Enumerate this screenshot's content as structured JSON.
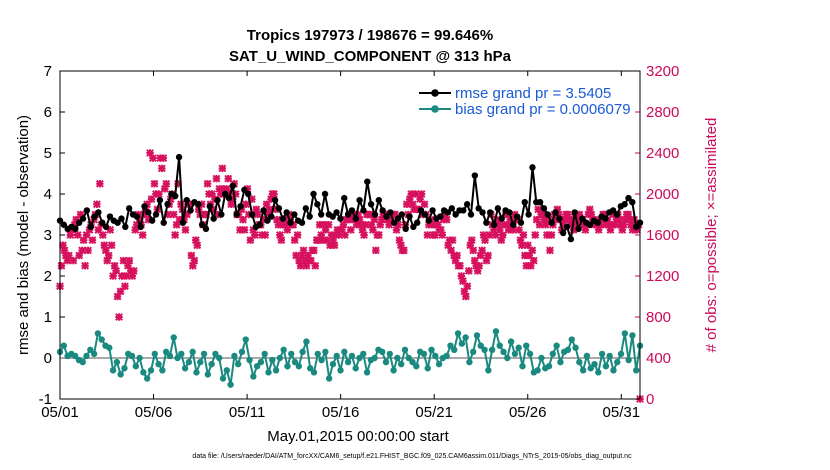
{
  "chart_data": {
    "type": "line",
    "title": "Tropics 197973 / 198676 = 99.646%",
    "subtitle": "SAT_U_WIND_COMPONENT @ 313 hPa",
    "xlabel": "May.01,2015 00:00:00 start",
    "ylabel": "rmse and bias (model - observation)",
    "ylabel_right": "# of obs: o=possible; ×=assimilated",
    "footnote": "data file: /Users/raeder/DAI/ATM_forcXX/CAM6_setup/f.e21.FHIST_BGC.f09_025.CAM6assim.011/Diags_NTrS_2015-05/obs_diag_output.nc",
    "x_ticks": [
      "05/01",
      "05/06",
      "05/11",
      "05/16",
      "05/21",
      "05/26",
      "05/31"
    ],
    "x_tick_days": [
      1,
      6,
      11,
      16,
      21,
      26,
      31
    ],
    "xlim": [
      1,
      32
    ],
    "ylim": [
      -1,
      7
    ],
    "y_ticks": [
      -1,
      0,
      1,
      2,
      3,
      4,
      5,
      6,
      7
    ],
    "ylim_right": [
      0,
      3200
    ],
    "y_ticks_right": [
      0,
      400,
      800,
      1200,
      1600,
      2000,
      2400,
      2800,
      3200
    ],
    "colors": {
      "rmse": "#000000",
      "bias": "#1a8a80",
      "obs": "#d6115e",
      "legend_text": "#1a5ad6",
      "zero_line": "#aaaaaa"
    },
    "series": [
      {
        "name": "rmse grand pr = 3.5405",
        "values": [
          3.35,
          3.25,
          3.15,
          3.2,
          3.15,
          3.3,
          3.4,
          3.6,
          3.2,
          3.45,
          3.55,
          3.3,
          3.2,
          3.45,
          3.35,
          3.3,
          3.4,
          3.2,
          3.65,
          3.5,
          3.45,
          3.2,
          3.7,
          3.55,
          3.35,
          3.5,
          3.85,
          3.3,
          3.75,
          4.0,
          3.95,
          4.9,
          3.3,
          3.85,
          3.6,
          3.8,
          3.75,
          3.25,
          3.15,
          3.7,
          3.4,
          3.85,
          3.5,
          4.0,
          3.9,
          4.2,
          3.5,
          3.7,
          4.1,
          4.0,
          3.5,
          3.2,
          3.25,
          3.6,
          3.35,
          3.45,
          3.85,
          3.65,
          3.4,
          3.55,
          3.3,
          3.5,
          3.35,
          3.3,
          3.65,
          3.45,
          4.0,
          3.75,
          3.5,
          4.0,
          3.5,
          3.45,
          3.55,
          3.4,
          3.9,
          3.5,
          3.6,
          3.4,
          3.85,
          3.6,
          4.3,
          3.75,
          3.5,
          3.85,
          3.6,
          3.45,
          3.55,
          3.3,
          3.4,
          3.5,
          3.15,
          3.45,
          3.2,
          3.3,
          3.6,
          3.5,
          3.35,
          3.6,
          3.4,
          3.45,
          3.6,
          3.55,
          3.65,
          3.5,
          3.6,
          3.6,
          3.75,
          3.5,
          4.45,
          3.65,
          3.55,
          3.3,
          3.55,
          3.25,
          3.65,
          3.4,
          3.6,
          3.55,
          3.25,
          3.45,
          3.3,
          3.8,
          3.5,
          4.65,
          3.8,
          3.8,
          3.65,
          3.5,
          3.3,
          3.55,
          3.4,
          3.05,
          3.2,
          2.9,
          3.55,
          3.15,
          3.4,
          3.3,
          3.25,
          3.35,
          3.3,
          3.45,
          3.4,
          3.55,
          3.6,
          3.5,
          3.7,
          3.75,
          3.9,
          3.8,
          3.2,
          3.3
        ],
        "color": "#000000",
        "marker": "circle"
      },
      {
        "name": "bias grand pr = 0.0006079",
        "values": [
          0.15,
          0.3,
          0.05,
          0.1,
          0.05,
          -0.05,
          -0.1,
          0.05,
          0.2,
          0.1,
          0.6,
          0.45,
          0.3,
          0.25,
          -0.3,
          -0.1,
          -0.4,
          -0.25,
          0.1,
          0.05,
          -0.2,
          0.0,
          -0.35,
          -0.5,
          -0.3,
          0.1,
          -0.15,
          -0.3,
          0.15,
          0.05,
          0.5,
          0.0,
          0.1,
          -0.25,
          -0.1,
          0.15,
          -0.35,
          -0.1,
          0.1,
          -0.4,
          -0.15,
          0.1,
          0.0,
          -0.5,
          -0.3,
          -0.65,
          0.05,
          -0.15,
          0.15,
          0.45,
          -0.05,
          -0.45,
          -0.2,
          -0.1,
          0.1,
          -0.35,
          -0.05,
          -0.3,
          0.0,
          0.2,
          -0.2,
          0.1,
          -0.1,
          -0.2,
          0.15,
          0.4,
          -0.25,
          -0.35,
          0.1,
          -0.05,
          0.15,
          -0.5,
          -0.15,
          0.05,
          -0.3,
          0.15,
          -0.1,
          0.05,
          -0.25,
          0.0,
          0.1,
          -0.35,
          -0.05,
          0.0,
          0.2,
          0.15,
          -0.1,
          0.1,
          -0.3,
          0.0,
          -0.15,
          0.2,
          0.0,
          -0.1,
          -0.2,
          0.15,
          0.1,
          -0.25,
          0.2,
          0.05,
          -0.15,
          0.0,
          0.05,
          0.3,
          0.2,
          0.6,
          0.35,
          0.5,
          -0.1,
          0.15,
          0.55,
          0.3,
          0.2,
          -0.3,
          0.2,
          0.65,
          0.3,
          0.15,
          0.0,
          0.4,
          0.1,
          0.25,
          -0.2,
          0.3,
          0.1,
          -0.35,
          -0.3,
          0.0,
          -0.25,
          -0.2,
          0.1,
          0.3,
          -0.1,
          0.15,
          0.2,
          0.45,
          0.25,
          -0.1,
          -0.3,
          0.05,
          -0.25,
          -0.15,
          -0.35,
          0.1,
          -0.2,
          0.05,
          -0.3,
          -0.1,
          0.1,
          0.6,
          -0.05,
          0.55,
          -0.3,
          0.3
        ],
        "color": "#1a8a80",
        "marker": "circle"
      },
      {
        "name": "obs assimilated",
        "axis": "right",
        "values": [
          1100,
          1300,
          1500,
          1450,
          1400,
          1350,
          1400,
          1600,
          1650,
          1350,
          1700,
          1750,
          1600,
          1400,
          1800,
          1450,
          1550,
          1300,
          1600,
          1450,
          1650,
          1700,
          1550,
          1750,
          1800,
          1900,
          1650,
          2100,
          1700,
          1600,
          1500,
          1450,
          1350,
          1400,
          1650,
          1500,
          1200,
          1300,
          1250,
          1000,
          800,
          1050,
          1200,
          1350,
          1100,
          1200,
          1300,
          1350,
          1250,
          1200,
          1250,
          1650,
          1700,
          1800,
          1750,
          1700,
          1600,
          1800,
          1850,
          1900,
          1750,
          2400,
          1950,
          2350,
          2100,
          2000,
          1850,
          2000,
          2350,
          2250,
          2350,
          2050,
          2100,
          1800,
          1900,
          1950,
          2000,
          1800,
          1600,
          1700,
          2100,
          1750,
          1900,
          1850,
          1750,
          1650,
          1800,
          1900,
          1900,
          1400,
          1300,
          1350,
          1550,
          1500,
          1850,
          1800,
          1900,
          1700,
          1800,
          1800,
          2100,
          2000,
          1900,
          2000,
          1850,
          1950,
          2150,
          1800,
          2050,
          2000,
          2250,
          2050,
          2000,
          2050,
          2150,
          2000,
          1900,
          1950,
          2100,
          2000,
          1800,
          1800,
          1650,
          1850,
          1750,
          1650,
          1900,
          2050,
          1800,
          1550,
          1950,
          1650,
          1600,
          1850,
          1800,
          1700,
          1700,
          1600,
          1750,
          1600,
          1900,
          1800,
          1850,
          1950,
          2000,
          2000,
          1850,
          1750,
          1700,
          1600,
          1550,
          1700,
          1750,
          1700,
          1650,
          1800,
          1750,
          1700,
          1700,
          1550,
          1400,
          1600,
          1350,
          1300,
          1400,
          1450,
          1350,
          1300,
          1400,
          1350,
          1350,
          1450,
          1450,
          1300,
          1550,
          1550,
          1700,
          1600,
          1550,
          1700,
          1650,
          1550,
          1700,
          1500,
          1600,
          1550,
          1500,
          1600,
          1650,
          1600,
          1650,
          1650,
          1700,
          1600,
          1750,
          1750,
          1800,
          1650,
          1750,
          1800,
          1750,
          1700,
          1800,
          1750,
          1700,
          1650,
          1600,
          1700,
          1800,
          1800,
          1800,
          1700,
          1650,
          1750,
          1450,
          1600,
          1600,
          1700,
          1750,
          1800,
          1800,
          1800,
          1750,
          1700,
          1750,
          1800,
          1800,
          1800,
          1650,
          1700,
          1550,
          1500,
          1450,
          1450,
          1700,
          1900,
          1800,
          1950,
          2000,
          1900,
          1850,
          2000,
          1850,
          1850,
          1950,
          2000,
          1800,
          1900,
          1800,
          1600,
          1700,
          1750,
          1700,
          1600,
          1600,
          1700,
          1700,
          1650,
          1650,
          1600,
          1750,
          1800,
          1750,
          1500,
          1550,
          1450,
          1550,
          1400,
          1350,
          1400,
          1300,
          1300,
          1200,
          1150,
          1050,
          1000,
          1100,
          1250,
          1500,
          1550,
          1450,
          1350,
          1300,
          1250,
          1300,
          1400,
          1450,
          1600,
          1550,
          1350,
          1400,
          1600,
          1800,
          1700,
          1650,
          1600,
          1750,
          1700,
          1650,
          1550,
          1600,
          1700,
          1800,
          1700,
          1650,
          1750,
          1700,
          1650,
          1800,
          1750,
          1750,
          1650,
          1550,
          1500,
          1600,
          1400,
          1300,
          1500,
          1400,
          1300,
          1450,
          1350,
          1600,
          1750,
          1850,
          1700,
          1800,
          1800,
          1750,
          1700,
          1600,
          1750,
          1450,
          1600,
          1700,
          1800,
          1750,
          1850,
          1800,
          1750,
          1650,
          1700,
          1750,
          1800,
          1800,
          1750,
          1700,
          1750,
          1650,
          1800,
          1700,
          1750,
          1800,
          1750,
          1750,
          1700,
          1650,
          1700,
          1800,
          1850,
          1800,
          1750,
          1700,
          1750,
          1700,
          1650,
          1700,
          1750,
          1800,
          1800,
          1700,
          1750,
          1700,
          1650,
          1700,
          1800,
          1700,
          1750,
          1800,
          1750,
          1700,
          1650,
          1700,
          1750,
          1800,
          1800,
          1750,
          1700,
          1650,
          1750,
          1700,
          1650,
          1700,
          0
        ],
        "color": "#d6115e",
        "marker": "x"
      }
    ]
  },
  "legend": {
    "rmse_label": "rmse grand pr = 3.5405",
    "bias_label": "bias grand pr = 0.0006079"
  }
}
